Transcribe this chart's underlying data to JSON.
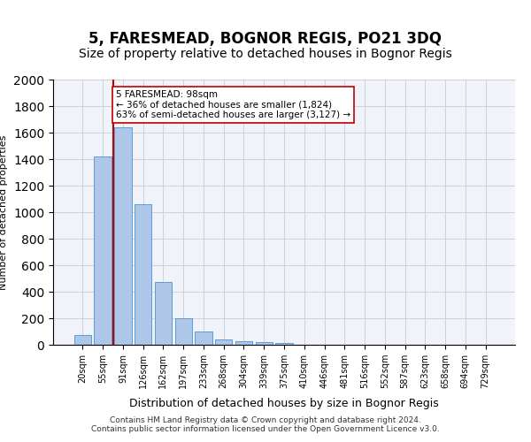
{
  "title1": "5, FARESMEAD, BOGNOR REGIS, PO21 3DQ",
  "title2": "Size of property relative to detached houses in Bognor Regis",
  "xlabel": "Distribution of detached houses by size in Bognor Regis",
  "ylabel": "Number of detached properties",
  "categories": [
    "20sqm",
    "55sqm",
    "91sqm",
    "126sqm",
    "162sqm",
    "197sqm",
    "233sqm",
    "268sqm",
    "304sqm",
    "339sqm",
    "375sqm",
    "410sqm",
    "446sqm",
    "481sqm",
    "516sqm",
    "552sqm",
    "587sqm",
    "623sqm",
    "658sqm",
    "694sqm",
    "729sqm"
  ],
  "values": [
    75,
    1420,
    1640,
    1060,
    475,
    200,
    100,
    40,
    30,
    20,
    15,
    0,
    0,
    0,
    0,
    0,
    0,
    0,
    0,
    0,
    0
  ],
  "bar_color": "#aec6e8",
  "bar_edge_color": "#5b9bd5",
  "vline_x": 2,
  "vline_color": "#c00000",
  "annotation_text": "5 FARESMEAD: 98sqm\n← 36% of detached houses are smaller (1,824)\n63% of semi-detached houses are larger (3,127) →",
  "annotation_box_color": "#ffffff",
  "annotation_box_edge": "#c00000",
  "ylim": [
    0,
    2000
  ],
  "yticks": [
    0,
    200,
    400,
    600,
    800,
    1000,
    1200,
    1400,
    1600,
    1800,
    2000
  ],
  "footer1": "Contains HM Land Registry data © Crown copyright and database right 2024.",
  "footer2": "Contains public sector information licensed under the Open Government Licence v3.0.",
  "background_color": "#f0f4fa",
  "title1_fontsize": 12,
  "title2_fontsize": 10
}
